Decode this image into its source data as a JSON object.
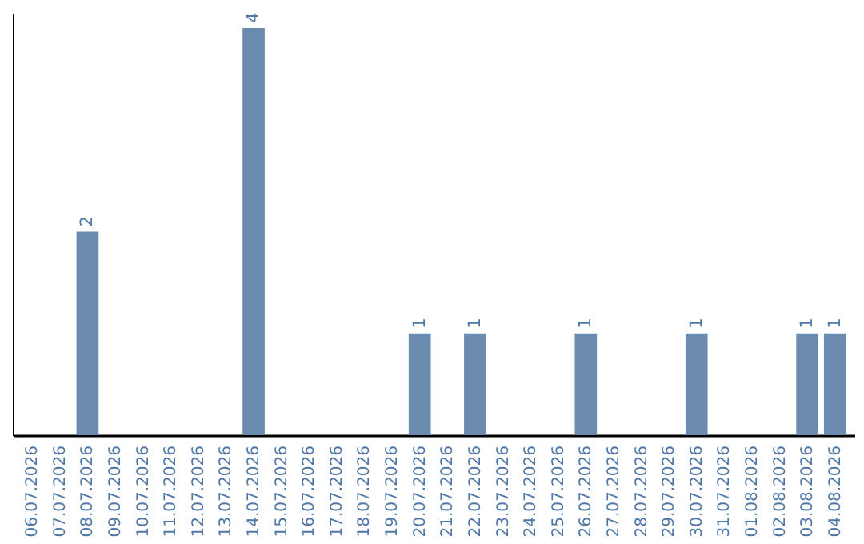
{
  "chart_data": {
    "type": "bar",
    "categories": [
      "06.07.2026",
      "07.07.2026",
      "08.07.2026",
      "09.07.2026",
      "10.07.2026",
      "11.07.2026",
      "12.07.2026",
      "13.07.2026",
      "14.07.2026",
      "15.07.2026",
      "16.07.2026",
      "17.07.2026",
      "18.07.2026",
      "19.07.2026",
      "20.07.2026",
      "21.07.2026",
      "22.07.2026",
      "23.07.2026",
      "24.07.2026",
      "25.07.2026",
      "26.07.2026",
      "27.07.2026",
      "28.07.2026",
      "29.07.2026",
      "30.07.2026",
      "31.07.2026",
      "01.08.2026",
      "02.08.2026",
      "03.08.2026",
      "04.08.2026"
    ],
    "values": [
      0,
      0,
      2,
      0,
      0,
      0,
      0,
      0,
      4,
      0,
      0,
      0,
      0,
      0,
      1,
      0,
      1,
      0,
      0,
      0,
      1,
      0,
      0,
      0,
      1,
      0,
      0,
      0,
      1,
      1
    ],
    "value_labels": [
      null,
      null,
      "2",
      null,
      null,
      null,
      null,
      null,
      "4",
      null,
      null,
      null,
      null,
      null,
      "1",
      null,
      "1",
      null,
      null,
      null,
      "1",
      null,
      null,
      null,
      "1",
      null,
      null,
      null,
      "1",
      "1"
    ],
    "color": "#6b8cae",
    "ylim": [
      0,
      4.15
    ],
    "tick_labels": "x",
    "grid": false
  }
}
